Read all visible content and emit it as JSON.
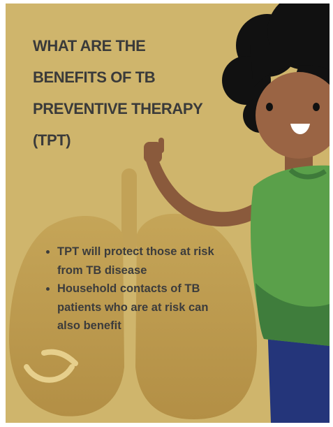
{
  "title": {
    "lines": [
      "WHAT ARE THE",
      "BENEFITS OF TB",
      "PREVENTIVE THERAPY",
      "(TPT)"
    ]
  },
  "bullets": [
    "TPT will protect those at risk from TB disease",
    "Household contacts of TB patients who are at risk can also benefit"
  ]
}
